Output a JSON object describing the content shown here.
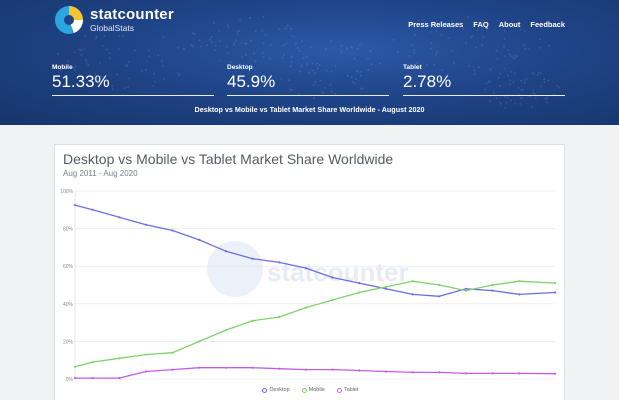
{
  "brand": {
    "name": "statcounter",
    "sub": "GlobalStats"
  },
  "nav": [
    "Press Releases",
    "FAQ",
    "About",
    "Feedback"
  ],
  "stats": [
    {
      "label": "Mobile",
      "value": "51.33%"
    },
    {
      "label": "Desktop",
      "value": "45.9%"
    },
    {
      "label": "Tablet",
      "value": "2.78%"
    }
  ],
  "headline": "Desktop vs Mobile vs Tablet Market Share Worldwide - August 2020",
  "colors": {
    "desktop": "#6b6ee0",
    "mobile": "#7fd26a",
    "tablet": "#c25ce8",
    "hero": "#1f4488"
  },
  "chart_data": {
    "type": "line",
    "title": "Desktop vs Mobile vs Tablet Market Share Worldwide",
    "subtitle": "Aug 2011 - Aug 2020",
    "ylim": [
      0,
      100
    ],
    "yticks": [
      "0%",
      "20%",
      "40%",
      "60%",
      "80%",
      "100%"
    ],
    "grid": true,
    "legend_position": "bottom",
    "watermark": "statcounter",
    "x": [
      2011.67,
      2012.0,
      2012.5,
      2013.0,
      2013.5,
      2014.0,
      2014.5,
      2015.0,
      2015.5,
      2016.0,
      2016.5,
      2017.0,
      2017.5,
      2018.0,
      2018.5,
      2019.0,
      2019.5,
      2020.0,
      2020.67
    ],
    "series": [
      {
        "name": "Desktop",
        "values": [
          92.5,
          90,
          86,
          82,
          79,
          74,
          68,
          64,
          62,
          59,
          54,
          51,
          48,
          45,
          44,
          48,
          47,
          45,
          46
        ]
      },
      {
        "name": "Mobile",
        "values": [
          6.5,
          9,
          11,
          13,
          14,
          20,
          26,
          31,
          33,
          38,
          42,
          46,
          49,
          52,
          50,
          47,
          50,
          52,
          51
        ]
      },
      {
        "name": "Tablet",
        "values": [
          0.5,
          0.5,
          0.5,
          4,
          5,
          6,
          6,
          6,
          5.5,
          5,
          5,
          4.5,
          4,
          3.5,
          3.5,
          3,
          3,
          3,
          2.8
        ]
      }
    ]
  }
}
